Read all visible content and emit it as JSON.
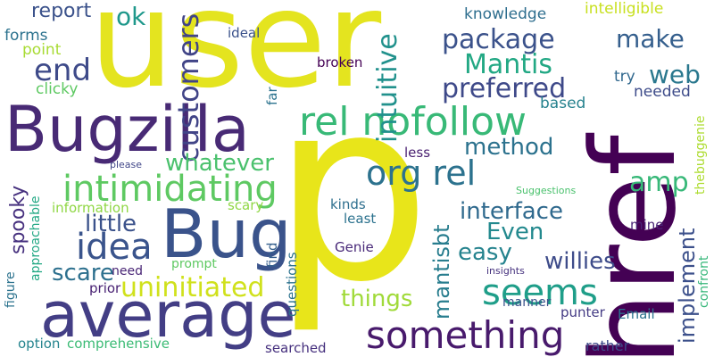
{
  "words": [
    {
      "text": "user",
      "color": "#e4e41f"
    },
    {
      "text": "p",
      "color": "#e8e51a"
    },
    {
      "text": "href",
      "color": "#440154"
    },
    {
      "text": "Bugzilla",
      "color": "#482a75"
    },
    {
      "text": "average",
      "color": "#433e85"
    },
    {
      "text": "Bug",
      "color": "#3a538b"
    },
    {
      "text": "rel nofollow",
      "color": "#38b977"
    },
    {
      "text": "org rel",
      "color": "#2c728e"
    },
    {
      "text": "something",
      "color": "#481a6c"
    },
    {
      "text": "intimidating",
      "color": "#5ec962"
    },
    {
      "text": "idea",
      "color": "#3a548c"
    },
    {
      "text": "seems",
      "color": "#1f9e89"
    },
    {
      "text": "uninitiated",
      "color": "#d0e11c"
    },
    {
      "text": "customers",
      "color": "#414487"
    },
    {
      "text": "intuitive",
      "color": "#21918c"
    },
    {
      "text": "package",
      "color": "#3b528b"
    },
    {
      "text": "preferred",
      "color": "#3e4989"
    },
    {
      "text": "Mantis",
      "color": "#22a884"
    },
    {
      "text": "end",
      "color": "#3e4a89"
    },
    {
      "text": "report",
      "color": "#3b528b"
    },
    {
      "text": "ok",
      "color": "#1f988b"
    },
    {
      "text": "make",
      "color": "#355f8d"
    },
    {
      "text": "web",
      "color": "#2a788e"
    },
    {
      "text": "method",
      "color": "#2c728e"
    },
    {
      "text": "whatever",
      "color": "#4ac16d"
    },
    {
      "text": "amp",
      "color": "#37b878"
    },
    {
      "text": "interface",
      "color": "#306a8e"
    },
    {
      "text": "Even",
      "color": "#23898e"
    },
    {
      "text": "easy",
      "color": "#25838e"
    },
    {
      "text": "willies",
      "color": "#3e4c8a"
    },
    {
      "text": "implement",
      "color": "#3c508b"
    },
    {
      "text": "mantisbt",
      "color": "#287d8e"
    },
    {
      "text": "things",
      "color": "#a0da39"
    },
    {
      "text": "little",
      "color": "#3b528b"
    },
    {
      "text": "scare",
      "color": "#2d708e"
    },
    {
      "text": "spooky",
      "color": "#46307e"
    },
    {
      "text": "knowledge",
      "color": "#2e6e8e"
    },
    {
      "text": "intelligible",
      "color": "#c8e020"
    },
    {
      "text": "forms",
      "color": "#2c728e"
    },
    {
      "text": "point",
      "color": "#a8db34"
    },
    {
      "text": "clicky",
      "color": "#5ec962"
    },
    {
      "text": "ideal",
      "color": "#3b528b"
    },
    {
      "text": "broken",
      "color": "#440154"
    },
    {
      "text": "try",
      "color": "#31688e"
    },
    {
      "text": "needed",
      "color": "#3e4c8a"
    },
    {
      "text": "based",
      "color": "#26828e"
    },
    {
      "text": "thebuggenie",
      "color": "#addc30"
    },
    {
      "text": "far",
      "color": "#2c738e"
    },
    {
      "text": "less",
      "color": "#481f70"
    },
    {
      "text": "please",
      "color": "#404688"
    },
    {
      "text": "Suggestions",
      "color": "#4ac16d"
    },
    {
      "text": "approachable",
      "color": "#22a884"
    },
    {
      "text": "information",
      "color": "#8fd744"
    },
    {
      "text": "scary",
      "color": "#8fd744"
    },
    {
      "text": "kinds",
      "color": "#2e6f8e"
    },
    {
      "text": "least",
      "color": "#2c728e"
    },
    {
      "text": "mine",
      "color": "#482475"
    },
    {
      "text": "find",
      "color": "#355f8d"
    },
    {
      "text": "Genie",
      "color": "#482878"
    },
    {
      "text": "questions",
      "color": "#2c728e"
    },
    {
      "text": "need",
      "color": "#482475"
    },
    {
      "text": "prompt",
      "color": "#5ec962"
    },
    {
      "text": "insights",
      "color": "#46327e"
    },
    {
      "text": "confront",
      "color": "#35b779"
    },
    {
      "text": "figure",
      "color": "#2c738e"
    },
    {
      "text": "prior",
      "color": "#482173"
    },
    {
      "text": "manner",
      "color": "#3b528b"
    },
    {
      "text": "punter",
      "color": "#443b84"
    },
    {
      "text": "Email",
      "color": "#2c738e"
    },
    {
      "text": "option",
      "color": "#25848e"
    },
    {
      "text": "comprehensive",
      "color": "#3bbb75"
    },
    {
      "text": "searched",
      "color": "#46307e"
    },
    {
      "text": "rather",
      "color": "#3e4989"
    }
  ]
}
